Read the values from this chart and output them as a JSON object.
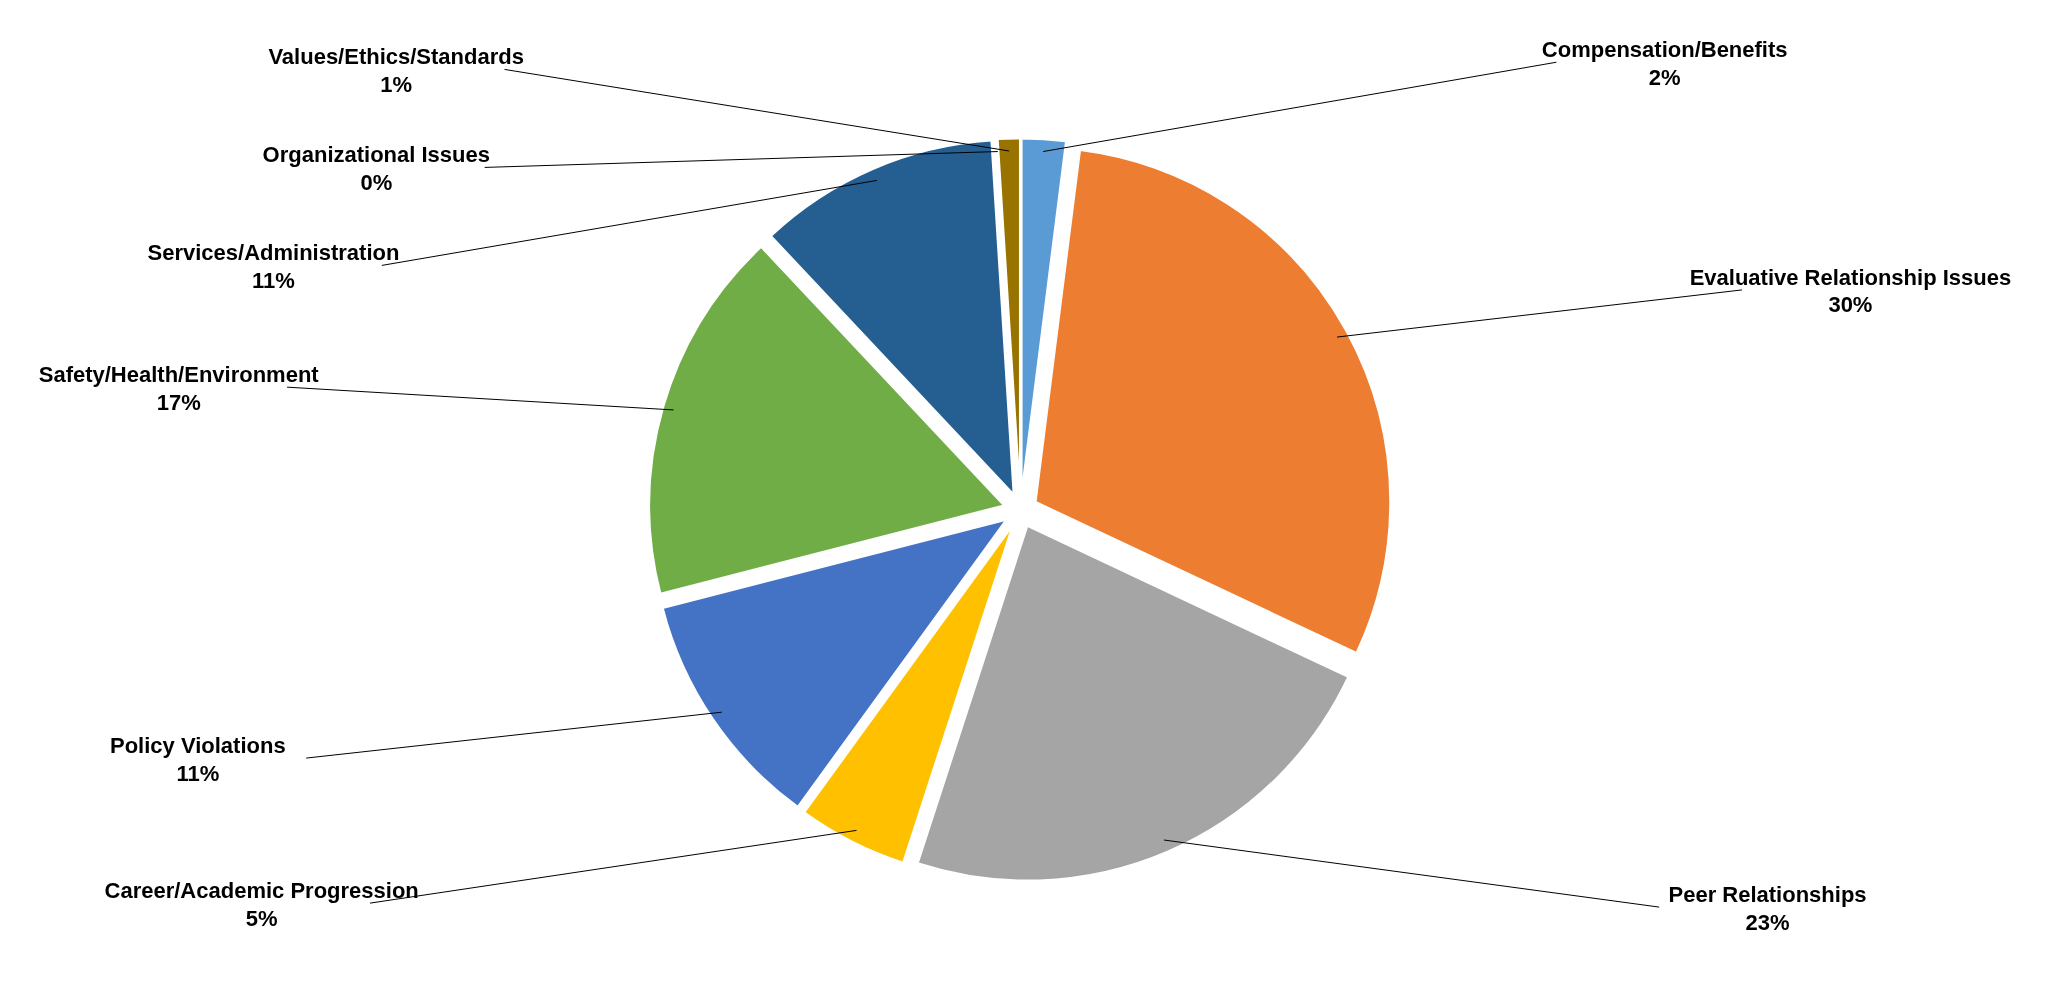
{
  "chart_data": {
    "type": "pie",
    "categories": [
      "Compensation/Benefits",
      "Evaluative Relationship Issues",
      "Peer Relationships",
      "Career/Academic Progression",
      "Policy Violations",
      "Safety/Health/Environment",
      "Services/Administration",
      "Organizational Issues",
      "Values/Ethics/Standards"
    ],
    "values": [
      2,
      30,
      23,
      5,
      11,
      17,
      11,
      0,
      1
    ],
    "value_labels": [
      "2%",
      "30%",
      "23%",
      "5%",
      "11%",
      "17%",
      "11%",
      "0%",
      "1%"
    ],
    "colors": [
      "#5b9bd5",
      "#ed7d31",
      "#a5a5a5",
      "#ffc000",
      "#4472c4",
      "#70ad47",
      "#255e91",
      "#636363",
      "#997300"
    ]
  }
}
